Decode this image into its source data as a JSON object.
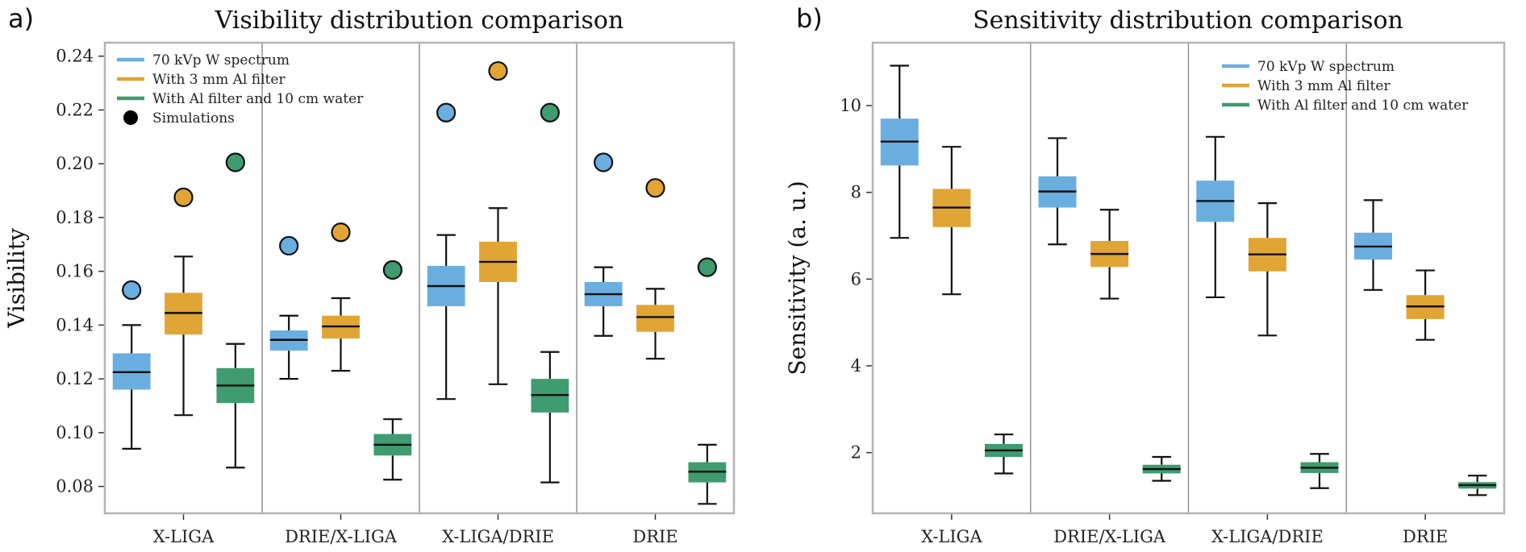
{
  "chart_data": [
    {
      "type": "box",
      "panel_label": "a)",
      "title": "Visibility distribution comparison",
      "xlabel": "",
      "ylabel": "Visibility",
      "categories": [
        "X-LIGA",
        "DRIE/X-LIGA",
        "X-LIGA/DRIE",
        "DRIE"
      ],
      "ylim": [
        0.07,
        0.245
      ],
      "yticks": [
        0.08,
        0.1,
        0.12,
        0.14,
        0.16,
        0.18,
        0.2,
        0.22,
        0.24
      ],
      "ytick_labels": [
        "0.08",
        "0.10",
        "0.12",
        "0.14",
        "0.16",
        "0.18",
        "0.20",
        "0.22",
        "0.24"
      ],
      "legend_position": "top-left",
      "legend_marker_label": "Simulations",
      "series": [
        {
          "name": "70 kVp W spectrum",
          "color": "#6aaee0",
          "boxes": [
            {
              "whislo": 0.094,
              "q1": 0.116,
              "med": 0.1225,
              "q3": 0.1295,
              "whishi": 0.14
            },
            {
              "whislo": 0.12,
              "q1": 0.1305,
              "med": 0.1345,
              "q3": 0.138,
              "whishi": 0.1435
            },
            {
              "whislo": 0.1125,
              "q1": 0.147,
              "med": 0.1545,
              "q3": 0.162,
              "whishi": 0.1735
            },
            {
              "whislo": 0.136,
              "q1": 0.147,
              "med": 0.1515,
              "q3": 0.156,
              "whishi": 0.1615
            }
          ],
          "simulations": [
            0.153,
            0.1695,
            0.219,
            0.2005
          ]
        },
        {
          "name": "With 3 mm Al filter",
          "color": "#e0a535",
          "boxes": [
            {
              "whislo": 0.1065,
              "q1": 0.1365,
              "med": 0.1445,
              "q3": 0.152,
              "whishi": 0.1655
            },
            {
              "whislo": 0.123,
              "q1": 0.135,
              "med": 0.1395,
              "q3": 0.1435,
              "whishi": 0.15
            },
            {
              "whislo": 0.118,
              "q1": 0.156,
              "med": 0.1635,
              "q3": 0.171,
              "whishi": 0.1835
            },
            {
              "whislo": 0.1275,
              "q1": 0.1375,
              "med": 0.143,
              "q3": 0.1475,
              "whishi": 0.1535
            }
          ],
          "simulations": [
            0.1875,
            0.1745,
            0.2345,
            0.191
          ]
        },
        {
          "name": "With Al filter and 10 cm water",
          "color": "#3e9c70",
          "boxes": [
            {
              "whislo": 0.087,
              "q1": 0.111,
              "med": 0.1175,
              "q3": 0.124,
              "whishi": 0.133
            },
            {
              "whislo": 0.0825,
              "q1": 0.0915,
              "med": 0.0955,
              "q3": 0.0995,
              "whishi": 0.105
            },
            {
              "whislo": 0.0815,
              "q1": 0.1075,
              "med": 0.114,
              "q3": 0.12,
              "whishi": 0.13
            },
            {
              "whislo": 0.0735,
              "q1": 0.0815,
              "med": 0.0855,
              "q3": 0.089,
              "whishi": 0.0955
            }
          ],
          "simulations": [
            0.2005,
            0.1605,
            0.219,
            0.1615
          ]
        }
      ]
    },
    {
      "type": "box",
      "panel_label": "b)",
      "title": "Sensitivity distribution comparison",
      "xlabel": "",
      "ylabel": "Sensitivity (a. u.)",
      "categories": [
        "X-LIGA",
        "DRIE/X-LIGA",
        "X-LIGA/DRIE",
        "DRIE"
      ],
      "ylim": [
        0.6,
        11.45
      ],
      "yticks": [
        2,
        4,
        6,
        8,
        10
      ],
      "ytick_labels": [
        "2",
        "4",
        "6",
        "8",
        "10"
      ],
      "legend_position": "top-right",
      "series": [
        {
          "name": "70 kVp W spectrum",
          "color": "#6aaee0",
          "boxes": [
            {
              "whislo": 6.95,
              "q1": 8.62,
              "med": 9.17,
              "q3": 9.7,
              "whishi": 10.92
            },
            {
              "whislo": 6.8,
              "q1": 7.65,
              "med": 8.02,
              "q3": 8.37,
              "whishi": 9.25
            },
            {
              "whislo": 5.58,
              "q1": 7.32,
              "med": 7.8,
              "q3": 8.27,
              "whishi": 9.28
            },
            {
              "whislo": 5.75,
              "q1": 6.45,
              "med": 6.75,
              "q3": 7.07,
              "whishi": 7.82
            }
          ]
        },
        {
          "name": "With 3 mm Al filter",
          "color": "#e0a535",
          "boxes": [
            {
              "whislo": 5.65,
              "q1": 7.2,
              "med": 7.65,
              "q3": 8.08,
              "whishi": 9.05
            },
            {
              "whislo": 5.55,
              "q1": 6.28,
              "med": 6.58,
              "q3": 6.88,
              "whishi": 7.6
            },
            {
              "whislo": 4.7,
              "q1": 6.18,
              "med": 6.57,
              "q3": 6.95,
              "whishi": 7.75
            },
            {
              "whislo": 4.6,
              "q1": 5.08,
              "med": 5.37,
              "q3": 5.63,
              "whishi": 6.2
            }
          ]
        },
        {
          "name": "With Al filter and 10 cm water",
          "color": "#3e9c70",
          "boxes": [
            {
              "whislo": 1.52,
              "q1": 1.9,
              "med": 2.05,
              "q3": 2.2,
              "whishi": 2.42
            },
            {
              "whislo": 1.35,
              "q1": 1.52,
              "med": 1.62,
              "q3": 1.72,
              "whishi": 1.9
            },
            {
              "whislo": 1.18,
              "q1": 1.53,
              "med": 1.65,
              "q3": 1.78,
              "whishi": 1.97
            },
            {
              "whislo": 1.02,
              "q1": 1.17,
              "med": 1.25,
              "q3": 1.32,
              "whishi": 1.47
            }
          ]
        }
      ]
    }
  ]
}
